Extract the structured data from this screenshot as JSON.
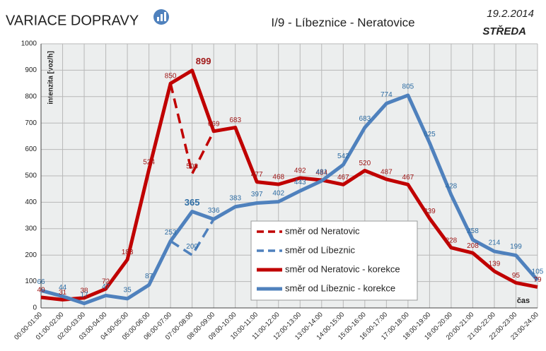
{
  "chart_data": {
    "type": "line",
    "title": "VARIACE DOPRAVY",
    "subtitle": "I/9 - Líbeznice - Neratovice",
    "date": "19.2.2014",
    "day": "STŘEDA",
    "y_label": "intenzita [voz/h]",
    "x_label": "čas",
    "categories": [
      "00:00-01:00",
      "01:00-02:00",
      "02:00-03:00",
      "03:00-04:00",
      "04:00-05:00",
      "05:00-06:00",
      "06:00-07:00",
      "07:00-08:00",
      "08:00-09:00",
      "09:00-10:00",
      "10:00-11:00",
      "11:00-12:00",
      "12:00-13:00",
      "13:00-14:00",
      "14:00-15:00",
      "15:00-16:00",
      "16:00-17:00",
      "17:00-18:00",
      "18:00-19:00",
      "19:00-20:00",
      "20:00-21:00",
      "21:00-22:00",
      "22:00-23:00",
      "23:00-24:00"
    ],
    "series": [
      {
        "name": "směr od Neratovic",
        "color": "#c00000",
        "dash": true,
        "values": [
          null,
          null,
          null,
          null,
          null,
          null,
          850,
          508,
          669,
          null,
          null,
          null,
          null,
          null,
          null,
          null,
          null,
          null,
          null,
          null,
          null,
          null,
          null,
          null
        ]
      },
      {
        "name": "směr od Líbeznic",
        "color": "#4f81bd",
        "dash": true,
        "values": [
          null,
          null,
          null,
          null,
          null,
          null,
          253,
          200,
          336,
          null,
          null,
          null,
          null,
          null,
          null,
          null,
          null,
          null,
          null,
          null,
          null,
          null,
          null,
          null
        ]
      },
      {
        "name": "směr od Neratovic - korekce",
        "color": "#c00000",
        "dash": false,
        "values": [
          40,
          31,
          38,
          72,
          183,
          524,
          850,
          899,
          669,
          683,
          477,
          468,
          492,
          484,
          467,
          520,
          487,
          467,
          339,
          228,
          208,
          139,
          95,
          79
        ]
      },
      {
        "name": "směr od Líbeznic - korekce",
        "color": "#4f81bd",
        "dash": false,
        "values": [
          66,
          44,
          17,
          47,
          35,
          87,
          253,
          365,
          336,
          383,
          397,
          402,
          443,
          481,
          542,
          683,
          774,
          805,
          625,
          428,
          258,
          214,
          199,
          105
        ]
      }
    ],
    "ylim": [
      0,
      1000
    ],
    "yticks": [
      0,
      100,
      200,
      300,
      400,
      500,
      600,
      700,
      800,
      900,
      1000
    ],
    "grid": true
  }
}
